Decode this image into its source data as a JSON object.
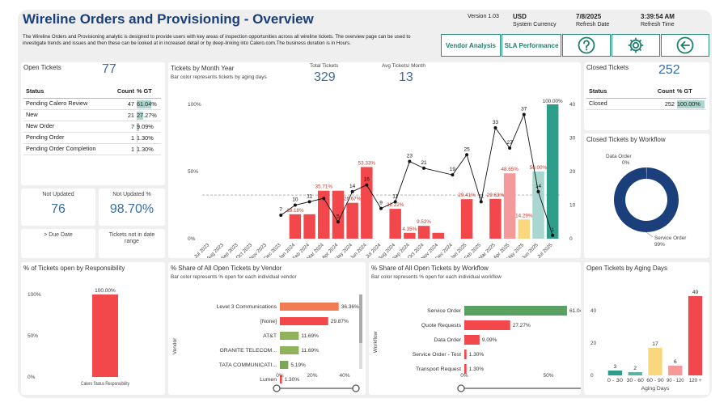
{
  "header": {
    "title": "Wireline Orders and Provisioning - Overview",
    "description": "The Wireline Orders and Provisioning analytic is designed to provide users with key areas of inspection opportunities across all wireline tickets. The overview page can be used to investigate trends and issues and then these can be looked at in increased detail or by deep-linking into Calero.com.The business duration is in Hours.",
    "version": "Version 1.03",
    "currency": "USD",
    "currency_label": "System Currency",
    "refresh_date": "7/8/2025",
    "refresh_date_label": "Refresh Date",
    "refresh_time": "3:39:54 AM",
    "refresh_time_label": "Refresh Time",
    "btn_vendor": "Vendor Analysis",
    "btn_sla": "SLA Performance"
  },
  "colors": {
    "accent": "#1f7f6d",
    "red": "#f2484b",
    "teal": "#2e9e8a",
    "navy": "#1b3f7a",
    "blue": "#3a6ea5"
  },
  "icons": {
    "help": "help-icon",
    "settings": "gear-icon",
    "back": "back-arrow-icon"
  },
  "open_tickets": {
    "title": "Open Tickets",
    "count": "77",
    "headers": [
      "Status",
      "Count",
      "% GT"
    ],
    "rows": [
      {
        "status": "Pending Calero Review",
        "count": "47",
        "pct": "61.04%",
        "frac": 0.6104
      },
      {
        "status": "New",
        "count": "21",
        "pct": "27.27%",
        "frac": 0.2727
      },
      {
        "status": "New Order",
        "count": "7",
        "pct": "9.09%",
        "frac": 0.0909
      },
      {
        "status": "Pending Order",
        "count": "1",
        "pct": "1.30%",
        "frac": 0.013
      },
      {
        "status": "Pending Order Completion",
        "count": "1",
        "pct": "1.30%",
        "frac": 0.013
      }
    ]
  },
  "kpis": {
    "not_updated_label": "Not Updated",
    "not_updated": "76",
    "not_updated_pct_label": "Not Updated %",
    "not_updated_pct": "98.70%",
    "due_date_label": "> Due Date",
    "not_in_range_label": "Tickets not in date range"
  },
  "closed_tickets": {
    "title": "Closed Tickets",
    "count": "252",
    "headers": [
      "Status",
      "Count",
      "% GT"
    ],
    "rows": [
      {
        "status": "Closed",
        "count": "252",
        "pct": "100.00%",
        "frac": 1.0
      }
    ]
  },
  "tickets_month": {
    "title": "Tickets by Month Year",
    "subtitle": "Bar color represents tickets by aging days",
    "total_label": "Total Tickets",
    "total": "329",
    "avg_label": "Avg Tickets/ Month",
    "avg": "13"
  },
  "closed_workflow": {
    "title": "Closed Tickets by Workflow",
    "label_top": "Data Order",
    "label_top_pct": "0%",
    "label_bottom": "Service Order",
    "label_bottom_pct": "99%"
  },
  "responsibility": {
    "title": "% of Tickets open by Responsibility"
  },
  "vendor_share": {
    "title": "% Share of All Open Tickets by Vendor",
    "subtitle": "Bar color represents % open for each individual vendor"
  },
  "workflow_share": {
    "title": "% Share of All Open Tickets by Workflow",
    "subtitle": "Bar color represents % open for each individual workflow"
  },
  "aging": {
    "title": "Open Tickets by Aging Days"
  },
  "chart_data": [
    {
      "type": "bar",
      "name": "tickets-by-month",
      "categories": [
        "Jul 2023",
        "Aug 2023",
        "Sep 2023",
        "Oct 2023",
        "Nov 2023",
        "Dec 2023",
        "Jan 2024",
        "Feb 2024",
        "Mar 2024",
        "Apr 2024",
        "May 2024",
        "Jun 2024",
        "Jul 2024",
        "Aug 2024",
        "Sep 2024",
        "Oct 2024",
        "Nov 2024",
        "Dec 2024",
        "Jan 2025",
        "Feb 2025",
        "Mar 2025",
        "Apr 2025",
        "May 2025",
        "Jun 2025",
        "Jul 2025"
      ],
      "series": [
        {
          "name": "% open",
          "values": [
            null,
            null,
            null,
            null,
            null,
            null,
            18.18,
            18.18,
            35.71,
            35.71,
            26.67,
            53.33,
            null,
            22.22,
            4.35,
            9.52,
            4.35,
            null,
            29.41,
            null,
            29.63,
            48.65,
            14.29,
            50.0,
            100.0
          ]
        },
        {
          "name": "count",
          "values": [
            null,
            null,
            null,
            null,
            null,
            7,
            10,
            11,
            12,
            5,
            14,
            16,
            9,
            11,
            23,
            21,
            null,
            19,
            25,
            11,
            33,
            27,
            37,
            14,
            1
          ]
        }
      ],
      "bar_colors": [
        "",
        "",
        "",
        "",
        "",
        "",
        "#f2484b",
        "#f2484b",
        "#f2484b",
        "#f2484b",
        "#f2484b",
        "#f2484b",
        "#f2484b",
        "#f2484b",
        "#f2484b",
        "#f2484b",
        "#f2484b",
        "",
        "#f2484b",
        "#f2484b",
        "#f2484b",
        "#f49a9a",
        "#f9d77e",
        "#a9d7cf",
        "#2e9e8a"
      ],
      "bar_labels": [
        "",
        "",
        "",
        "",
        "",
        "",
        "18.18%",
        "",
        "35.71%",
        "",
        "26.67%",
        "53.33%",
        "",
        "22.22%",
        "4.35%",
        "9.52%",
        "",
        "",
        "29.41%",
        "",
        "29.63%",
        "48.65%",
        "14.29%",
        "50.00%",
        "100.00%"
      ],
      "line_labels": [
        "",
        "",
        "",
        "",
        "",
        "7",
        "10",
        "11",
        "",
        "5",
        "14",
        "16",
        "9",
        "11",
        "23",
        "21",
        "",
        "19",
        "25",
        "11",
        "33",
        "27",
        "37",
        "14",
        "1"
      ],
      "yleft_ticks": [
        "0%",
        "50%",
        "100%"
      ],
      "yright_ticks": [
        "0",
        "10",
        "20",
        "30",
        "40"
      ],
      "ylim_left": [
        0,
        100
      ],
      "ylim_right": [
        0,
        40
      ]
    },
    {
      "type": "pie",
      "name": "closed-by-workflow",
      "categories": [
        "Data Order",
        "Service Order"
      ],
      "values": [
        0.4,
        99.6
      ]
    },
    {
      "type": "bar",
      "name": "responsibility",
      "categories": [
        "Calero Status Responsibility"
      ],
      "values": [
        100
      ],
      "labels": [
        "100.00%"
      ],
      "yticks": [
        "0%",
        "50%",
        "100%"
      ]
    },
    {
      "type": "bar",
      "name": "vendor-share",
      "orientation": "horizontal",
      "ylabel": "Vendor",
      "categories": [
        "Level 3 Communications",
        "[None]",
        "AT&T",
        "GRANITE TELECOM...",
        "TATA COMMUNICATI...",
        "Lumen"
      ],
      "values": [
        36.36,
        29.87,
        11.69,
        11.69,
        5.19,
        1.3
      ],
      "labels": [
        "36.36%",
        "29.87%",
        "11.69%",
        "11.69%",
        "5.19%",
        "1.30%"
      ],
      "colors": [
        "#f37b53",
        "#f2484b",
        "#8fb25a",
        "#8fb25a",
        "#7ba557",
        "#f2484b"
      ],
      "xticks": [
        "0%",
        "20%",
        "40%"
      ],
      "xlim": [
        0,
        45
      ]
    },
    {
      "type": "bar",
      "name": "workflow-share",
      "orientation": "horizontal",
      "ylabel": "Workflow",
      "categories": [
        "Service Order",
        "Quote Requests",
        "Data Order",
        "Service Order - Test",
        "Transport Request"
      ],
      "values": [
        61.04,
        27.27,
        9.09,
        1.3,
        1.3
      ],
      "labels": [
        "61.04%",
        "27.27%",
        "9.09%",
        "1.30%",
        "1.30%"
      ],
      "colors": [
        "#5aa060",
        "#f2484b",
        "#f2484b",
        "#f2484b",
        "#f2484b"
      ],
      "xticks": [
        "0%",
        "50%"
      ],
      "xlim": [
        0,
        100
      ]
    },
    {
      "type": "bar",
      "name": "aging-days",
      "xlabel": "Aging Days",
      "categories": [
        "0 - 30",
        "30 - 60",
        "60 - 90",
        "90 - 120",
        "120 +"
      ],
      "values": [
        3,
        2,
        17,
        6,
        49
      ],
      "colors": [
        "#2e9e8a",
        "#5bb3a1",
        "#f9d77e",
        "#f49a9a",
        "#f2484b"
      ],
      "yticks": [
        "0",
        "20",
        "40"
      ],
      "ylim": [
        0,
        52
      ]
    }
  ]
}
